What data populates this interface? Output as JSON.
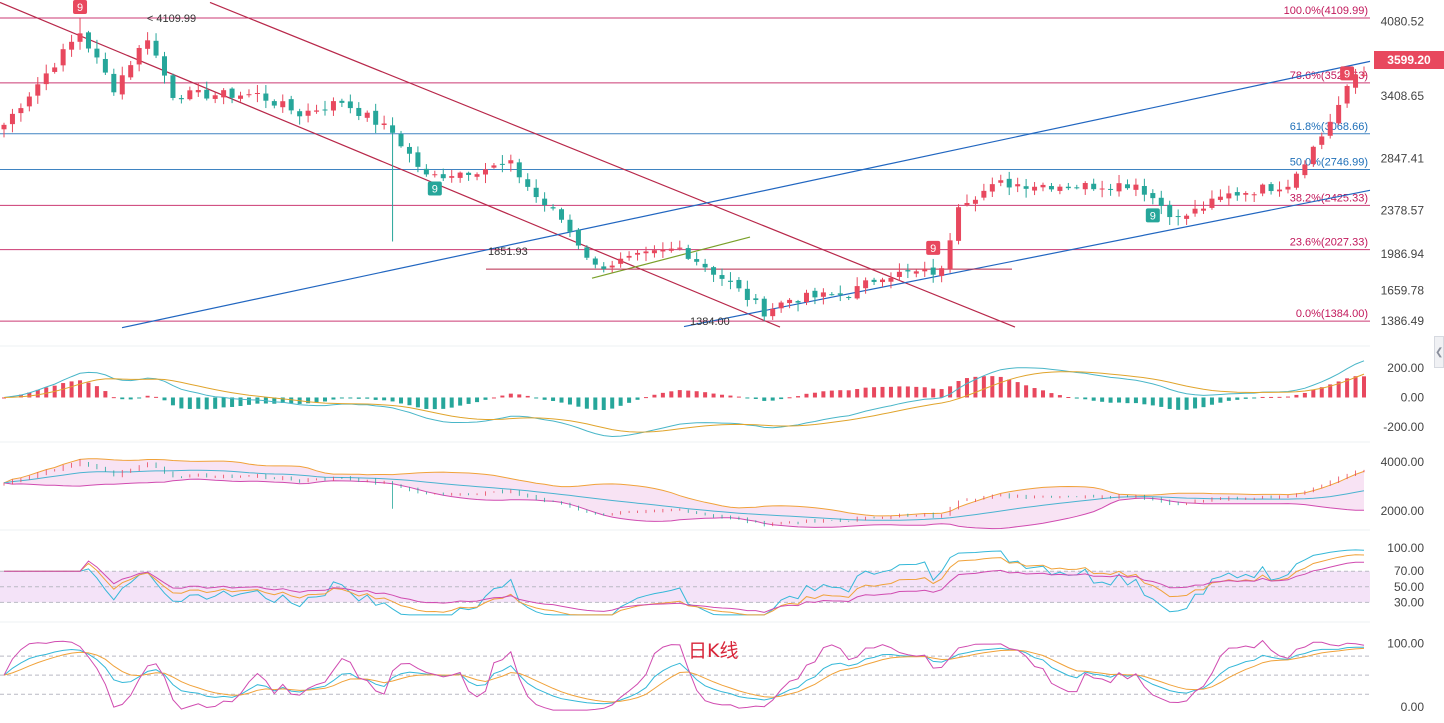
{
  "colors": {
    "up": "#e8485e",
    "down": "#26a69a",
    "fib": "#c2185b",
    "fib_mid": "#1e6fb8",
    "channel_down": "#b8284a",
    "channel_up": "#2166c0",
    "trend_green": "#7aa02a",
    "td_badge": "#e8485e",
    "td_badge_green": "#26a69a"
  },
  "price_tag": "3599.20",
  "caption": "日K线",
  "chart_data": [
    {
      "type": "candlestick",
      "panel": "price",
      "ylim": [
        1250,
        4200
      ],
      "y_tick_labels": [
        {
          "label": "4080.52",
          "value": 4080.52
        },
        {
          "label": "3408.65",
          "value": 3408.65
        },
        {
          "label": "2847.41",
          "value": 2847.41
        },
        {
          "label": "2378.57",
          "value": 2378.57
        },
        {
          "label": "1986.94",
          "value": 1986.94
        },
        {
          "label": "1659.78",
          "value": 1659.78
        },
        {
          "label": "1386.49",
          "value": 1386.49
        }
      ],
      "fib_levels": [
        {
          "label": "100.0%(4109.99)",
          "value": 4109.99
        },
        {
          "label": "78.6%(3526.63)",
          "value": 3526.63
        },
        {
          "label": "61.8%(3068.66)",
          "value": 3068.66
        },
        {
          "label": "50.0%(2746.99)",
          "value": 2746.99
        },
        {
          "label": "38.2%(2425.33)",
          "value": 2425.33
        },
        {
          "label": "23.6%(2027.33)",
          "value": 2027.33
        },
        {
          "label": "0.0%(1384.00)",
          "value": 1384.0
        }
      ],
      "annotations": [
        {
          "label": "4109.99",
          "value": 4109.99
        },
        {
          "label": "1851.93",
          "value": 1851.93
        },
        {
          "label": "1384.00",
          "value": 1384.0
        }
      ],
      "td_badges": [
        {
          "label": "9",
          "color": "red",
          "candle": 9
        },
        {
          "label": "9",
          "color": "green",
          "candle": 51
        },
        {
          "label": "9",
          "color": "red",
          "candle": 110
        },
        {
          "label": "9",
          "color": "green",
          "candle": 136
        },
        {
          "label": "9",
          "color": "red",
          "candle": 159
        }
      ],
      "anchors": [
        {
          "i": 0,
          "v": 3150
        },
        {
          "i": 9,
          "v": 3980
        },
        {
          "i": 13,
          "v": 3480
        },
        {
          "i": 17,
          "v": 3940
        },
        {
          "i": 20,
          "v": 3420
        },
        {
          "i": 30,
          "v": 3420
        },
        {
          "i": 35,
          "v": 3250
        },
        {
          "i": 40,
          "v": 3360
        },
        {
          "i": 46,
          "v": 3080
        },
        {
          "i": 50,
          "v": 2680
        },
        {
          "i": 60,
          "v": 2790
        },
        {
          "i": 63,
          "v": 2500
        },
        {
          "i": 66,
          "v": 2300
        },
        {
          "i": 70,
          "v": 1870
        },
        {
          "i": 80,
          "v": 2040
        },
        {
          "i": 86,
          "v": 1720
        },
        {
          "i": 90,
          "v": 1470
        },
        {
          "i": 93,
          "v": 1580
        },
        {
          "i": 100,
          "v": 1630
        },
        {
          "i": 104,
          "v": 1800
        },
        {
          "i": 111,
          "v": 1830
        },
        {
          "i": 113,
          "v": 2450
        },
        {
          "i": 118,
          "v": 2620
        },
        {
          "i": 128,
          "v": 2600
        },
        {
          "i": 134,
          "v": 2620
        },
        {
          "i": 139,
          "v": 2300
        },
        {
          "i": 145,
          "v": 2520
        },
        {
          "i": 152,
          "v": 2620
        },
        {
          "i": 156,
          "v": 3050
        },
        {
          "i": 160,
          "v": 3599
        }
      ]
    },
    {
      "type": "macd",
      "panel": "macd",
      "ylim": [
        -260,
        280
      ],
      "y_tick_labels": [
        {
          "label": "200.00",
          "value": 200
        },
        {
          "label": "0.00",
          "value": 0
        },
        {
          "label": "-200.00",
          "value": -200
        }
      ]
    },
    {
      "type": "bollinger",
      "panel": "boll",
      "ylim": [
        1400,
        4400
      ],
      "y_tick_labels": [
        {
          "label": "4000.00",
          "value": 4000
        },
        {
          "label": "2000.00",
          "value": 2000
        }
      ]
    },
    {
      "type": "rsi",
      "panel": "rsi",
      "ylim": [
        10,
        110
      ],
      "band": [
        30,
        70
      ],
      "y_tick_labels": [
        {
          "label": "100.00",
          "value": 100
        },
        {
          "label": "70.00",
          "value": 70
        },
        {
          "label": "50.00",
          "value": 50
        },
        {
          "label": "30.00",
          "value": 30
        }
      ]
    },
    {
      "type": "kdj",
      "panel": "kdj",
      "ylim": [
        -8,
        118
      ],
      "y_tick_labels": [
        {
          "label": "100.00",
          "value": 100
        },
        {
          "label": "0.00",
          "value": 0
        }
      ]
    }
  ]
}
